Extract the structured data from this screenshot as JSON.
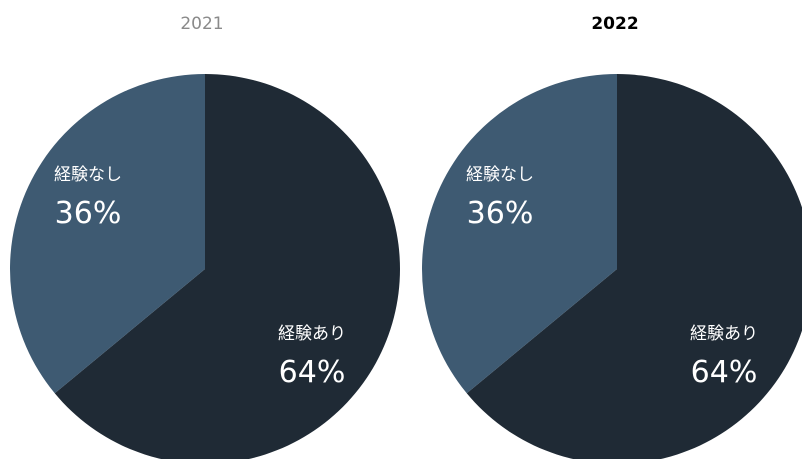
{
  "chart_data": [
    {
      "type": "pie",
      "title": "2021",
      "slices": [
        {
          "label": "経験あり",
          "value": 64,
          "display": "64%",
          "color": "#1f2a35"
        },
        {
          "label": "経験なし",
          "value": 36,
          "display": "36%",
          "color": "#3e5a72"
        }
      ]
    },
    {
      "type": "pie",
      "title": "2022",
      "slices": [
        {
          "label": "経験あり",
          "value": 64,
          "display": "64%",
          "color": "#1f2a35"
        },
        {
          "label": "経験なし",
          "value": 36,
          "display": "36%",
          "color": "#3e5a72"
        }
      ]
    }
  ]
}
